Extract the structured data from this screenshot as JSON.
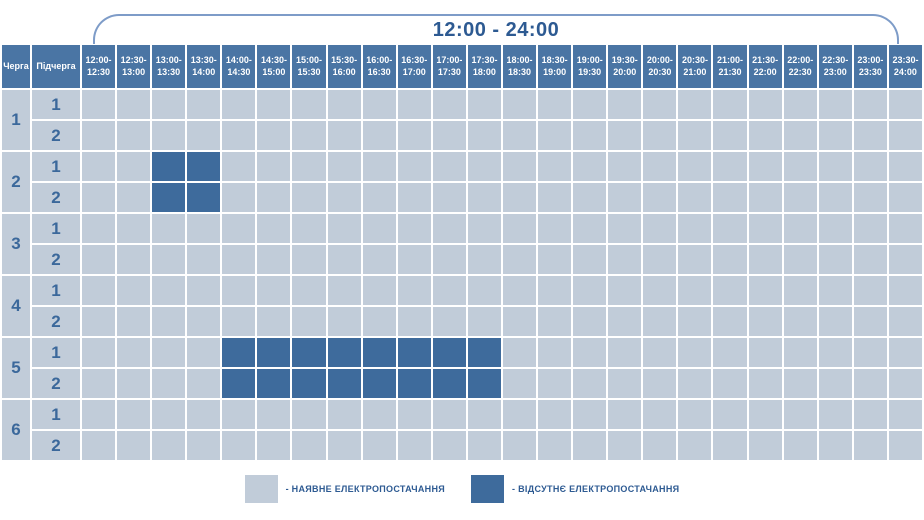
{
  "title": "12:00 - 24:00",
  "colors": {
    "header_bg": "#4a75a4",
    "cell_power_on": "#c1ccd9",
    "cell_power_off": "#3e6b9c",
    "number_text": "#3b689b",
    "title_text": "#2d5a92",
    "bracket_line": "#7e9cc8",
    "legend_text": "#2d5a92"
  },
  "table": {
    "queue_header": "Черга",
    "subqueue_header": "Підчерга",
    "time_slots": [
      {
        "top": "12:00-",
        "bottom": "12:30"
      },
      {
        "top": "12:30-",
        "bottom": "13:00"
      },
      {
        "top": "13:00-",
        "bottom": "13:30"
      },
      {
        "top": "13:30-",
        "bottom": "14:00"
      },
      {
        "top": "14:00-",
        "bottom": "14:30"
      },
      {
        "top": "14:30-",
        "bottom": "15:00"
      },
      {
        "top": "15:00-",
        "bottom": "15:30"
      },
      {
        "top": "15:30-",
        "bottom": "16:00"
      },
      {
        "top": "16:00-",
        "bottom": "16:30"
      },
      {
        "top": "16:30-",
        "bottom": "17:00"
      },
      {
        "top": "17:00-",
        "bottom": "17:30"
      },
      {
        "top": "17:30-",
        "bottom": "18:00"
      },
      {
        "top": "18:00-",
        "bottom": "18:30"
      },
      {
        "top": "18:30-",
        "bottom": "19:00"
      },
      {
        "top": "19:00-",
        "bottom": "19:30"
      },
      {
        "top": "19:30-",
        "bottom": "20:00"
      },
      {
        "top": "20:00-",
        "bottom": "20:30"
      },
      {
        "top": "20:30-",
        "bottom": "21:00"
      },
      {
        "top": "21:00-",
        "bottom": "21:30"
      },
      {
        "top": "21:30-",
        "bottom": "22:00"
      },
      {
        "top": "22:00-",
        "bottom": "22:30"
      },
      {
        "top": "22:30-",
        "bottom": "23:00"
      },
      {
        "top": "23:00-",
        "bottom": "23:30"
      },
      {
        "top": "23:30-",
        "bottom": "24:00"
      }
    ],
    "queues": [
      {
        "number": "1",
        "subqueues": [
          {
            "number": "1"
          },
          {
            "number": "2"
          }
        ]
      },
      {
        "number": "2",
        "subqueues": [
          {
            "number": "1"
          },
          {
            "number": "2"
          }
        ]
      },
      {
        "number": "3",
        "subqueues": [
          {
            "number": "1"
          },
          {
            "number": "2"
          }
        ]
      },
      {
        "number": "4",
        "subqueues": [
          {
            "number": "1"
          },
          {
            "number": "2"
          }
        ]
      },
      {
        "number": "5",
        "subqueues": [
          {
            "number": "1"
          },
          {
            "number": "2"
          }
        ]
      },
      {
        "number": "6",
        "subqueues": [
          {
            "number": "1"
          },
          {
            "number": "2"
          }
        ]
      }
    ]
  },
  "chart_data": {
    "type": "heatmap",
    "title": "12:00 - 24:00",
    "x_labels": [
      "12:00-12:30",
      "12:30-13:00",
      "13:00-13:30",
      "13:30-14:00",
      "14:00-14:30",
      "14:30-15:00",
      "15:00-15:30",
      "15:30-16:00",
      "16:00-16:30",
      "16:30-17:00",
      "17:00-17:30",
      "17:30-18:00",
      "18:00-18:30",
      "18:30-19:00",
      "19:00-19:30",
      "19:30-20:00",
      "20:00-20:30",
      "20:30-21:00",
      "21:00-21:30",
      "21:30-22:00",
      "22:00-22:30",
      "22:30-23:00",
      "23:00-23:30",
      "23:30-24:00"
    ],
    "y_labels": [
      "1.1",
      "1.2",
      "2.1",
      "2.2",
      "3.1",
      "3.2",
      "4.1",
      "4.2",
      "5.1",
      "5.2",
      "6.1",
      "6.2"
    ],
    "value_meaning": {
      "0": "наявне електропостачання",
      "1": "відсутнє електропостачання"
    },
    "values": [
      [
        0,
        0,
        0,
        0,
        0,
        0,
        0,
        0,
        0,
        0,
        0,
        0,
        0,
        0,
        0,
        0,
        0,
        0,
        0,
        0,
        0,
        0,
        0,
        0
      ],
      [
        0,
        0,
        0,
        0,
        0,
        0,
        0,
        0,
        0,
        0,
        0,
        0,
        0,
        0,
        0,
        0,
        0,
        0,
        0,
        0,
        0,
        0,
        0,
        0
      ],
      [
        0,
        0,
        1,
        1,
        0,
        0,
        0,
        0,
        0,
        0,
        0,
        0,
        0,
        0,
        0,
        0,
        0,
        0,
        0,
        0,
        0,
        0,
        0,
        0
      ],
      [
        0,
        0,
        1,
        1,
        0,
        0,
        0,
        0,
        0,
        0,
        0,
        0,
        0,
        0,
        0,
        0,
        0,
        0,
        0,
        0,
        0,
        0,
        0,
        0
      ],
      [
        0,
        0,
        0,
        0,
        0,
        0,
        0,
        0,
        0,
        0,
        0,
        0,
        0,
        0,
        0,
        0,
        0,
        0,
        0,
        0,
        0,
        0,
        0,
        0
      ],
      [
        0,
        0,
        0,
        0,
        0,
        0,
        0,
        0,
        0,
        0,
        0,
        0,
        0,
        0,
        0,
        0,
        0,
        0,
        0,
        0,
        0,
        0,
        0,
        0
      ],
      [
        0,
        0,
        0,
        0,
        0,
        0,
        0,
        0,
        0,
        0,
        0,
        0,
        0,
        0,
        0,
        0,
        0,
        0,
        0,
        0,
        0,
        0,
        0,
        0
      ],
      [
        0,
        0,
        0,
        0,
        0,
        0,
        0,
        0,
        0,
        0,
        0,
        0,
        0,
        0,
        0,
        0,
        0,
        0,
        0,
        0,
        0,
        0,
        0,
        0
      ],
      [
        0,
        0,
        0,
        0,
        1,
        1,
        1,
        1,
        1,
        1,
        1,
        1,
        0,
        0,
        0,
        0,
        0,
        0,
        0,
        0,
        0,
        0,
        0,
        0
      ],
      [
        0,
        0,
        0,
        0,
        1,
        1,
        1,
        1,
        1,
        1,
        1,
        1,
        0,
        0,
        0,
        0,
        0,
        0,
        0,
        0,
        0,
        0,
        0,
        0
      ],
      [
        0,
        0,
        0,
        0,
        0,
        0,
        0,
        0,
        0,
        0,
        0,
        0,
        0,
        0,
        0,
        0,
        0,
        0,
        0,
        0,
        0,
        0,
        0,
        0
      ],
      [
        0,
        0,
        0,
        0,
        0,
        0,
        0,
        0,
        0,
        0,
        0,
        0,
        0,
        0,
        0,
        0,
        0,
        0,
        0,
        0,
        0,
        0,
        0,
        0
      ]
    ],
    "legend_position": "bottom",
    "grid": true
  },
  "legend": [
    {
      "swatch": "on",
      "label": "- НАЯВНЕ ЕЛЕКТРОПОСТАЧАННЯ"
    },
    {
      "swatch": "off",
      "label": "- ВІДСУТНЄ ЕЛЕКТРОПОСТАЧАННЯ"
    }
  ]
}
